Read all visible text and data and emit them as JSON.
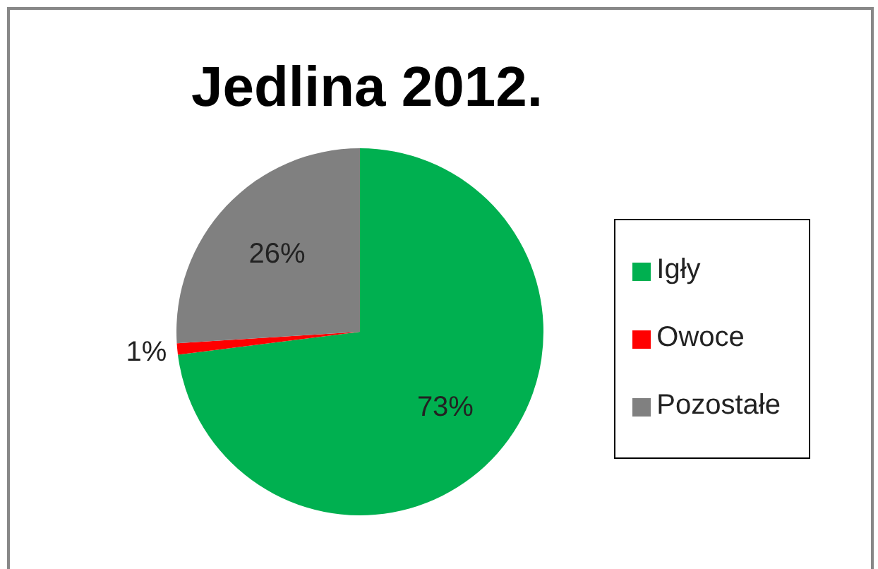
{
  "chart_data": {
    "type": "pie",
    "title": "Jedlina 2012.",
    "categories": [
      "Igły",
      "Owoce",
      "Pozostałe"
    ],
    "values": [
      73,
      1,
      26
    ],
    "colors": [
      "#00b050",
      "#ff0000",
      "#808080"
    ],
    "value_labels": [
      "73%",
      "1%",
      "26%"
    ],
    "legend": "right"
  }
}
